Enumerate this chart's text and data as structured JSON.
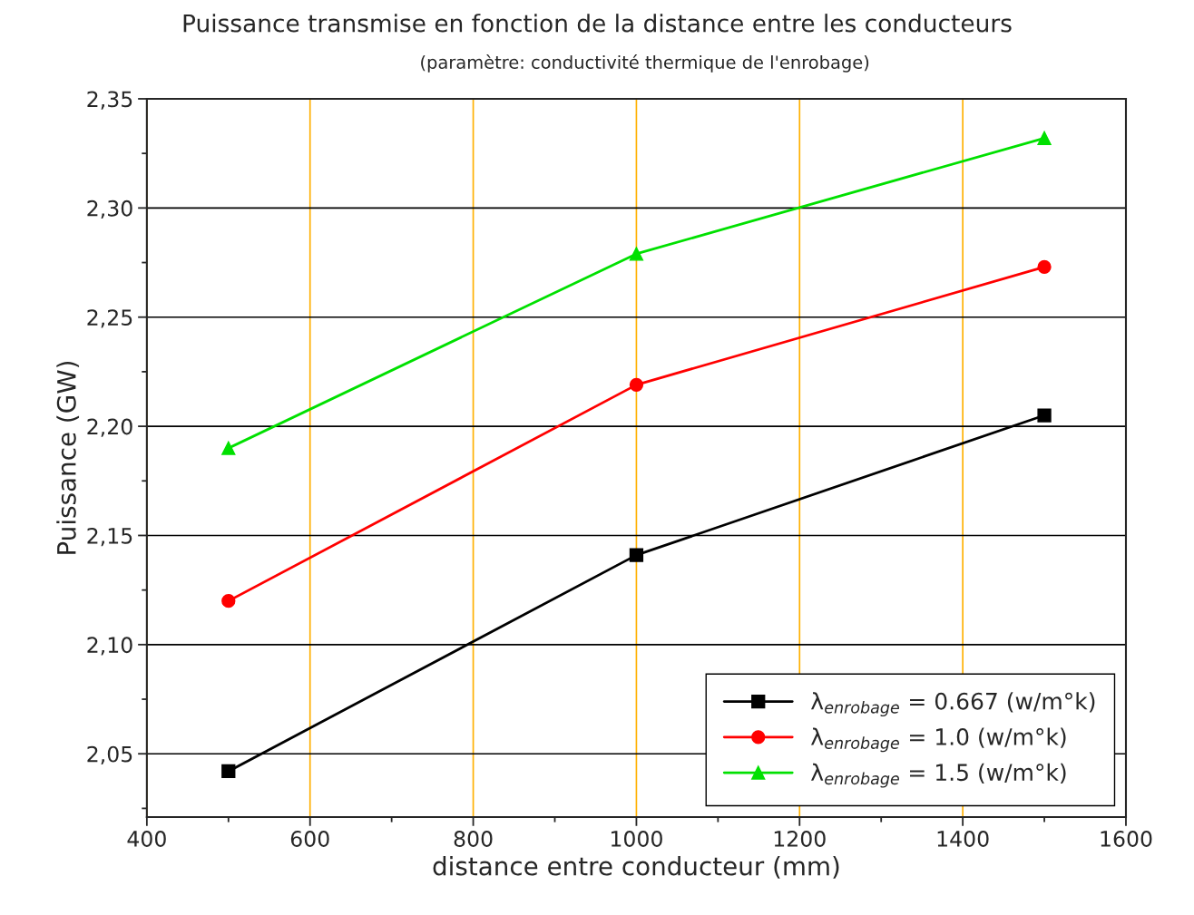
{
  "chart_data": {
    "type": "line",
    "title": "Puissance transmise en fonction de la distance entre les conducteurs",
    "subtitle": "(paramètre: conductivité thermique de l'enrobage)",
    "xlabel": "distance entre conducteur (mm)",
    "ylabel": "Puissance (GW)",
    "x": [
      500,
      1000,
      1500
    ],
    "series": [
      {
        "name": "λ$_{enrobage}$ = 0.667 (w/m°k)",
        "color": "#000000",
        "marker": "square",
        "values": [
          2.042,
          2.141,
          2.205
        ]
      },
      {
        "name": "λ$_{enrobage}$ = 1.0 (w/m°k)",
        "color": "#ff0000",
        "marker": "circle",
        "values": [
          2.12,
          2.219,
          2.273
        ]
      },
      {
        "name": "λ$_{enrobage}$ = 1.5 (w/m°k)",
        "color": "#00e000",
        "marker": "triangle",
        "values": [
          2.19,
          2.279,
          2.332
        ]
      }
    ],
    "xlim": [
      400,
      1600
    ],
    "xticks": [
      400,
      600,
      800,
      1000,
      1200,
      1400,
      1600
    ],
    "ylim": [
      2.021,
      2.35
    ],
    "yticks": [
      {
        "value": 2.05,
        "label": "2,05"
      },
      {
        "value": 2.1,
        "label": "2,10"
      },
      {
        "value": 2.15,
        "label": "2,15"
      },
      {
        "value": 2.2,
        "label": "2,20"
      },
      {
        "value": 2.25,
        "label": "2,25"
      },
      {
        "value": 2.3,
        "label": "2,30"
      },
      {
        "value": 2.35,
        "label": "2,35"
      }
    ],
    "grid": true,
    "legend": "bottom right",
    "line_style": "solid"
  }
}
